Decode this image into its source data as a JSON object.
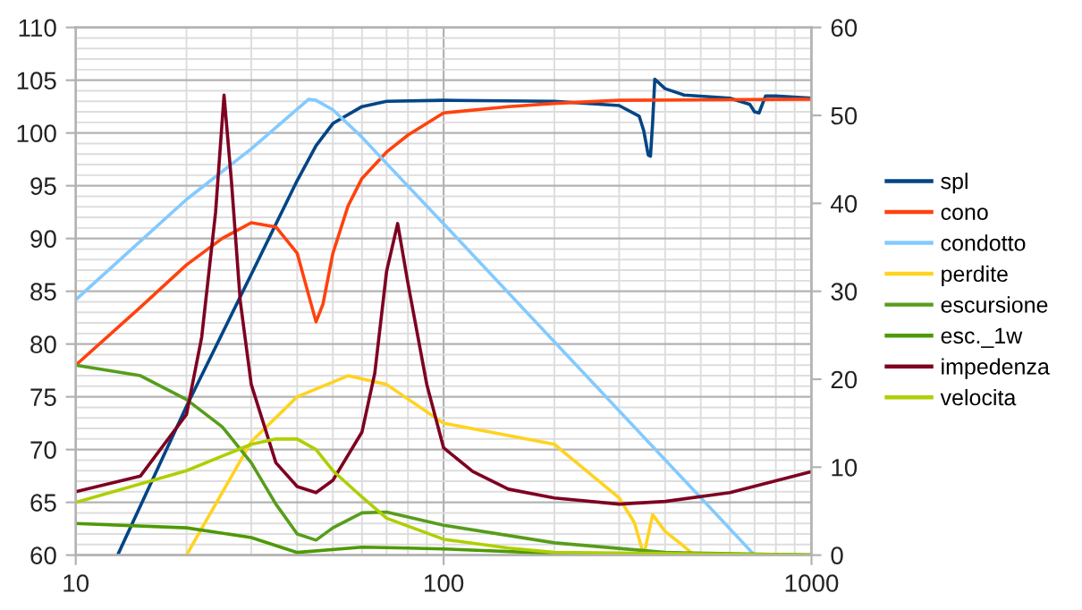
{
  "chart_data": {
    "type": "line",
    "log": "x",
    "xlim": [
      10,
      1000
    ],
    "xticks": [
      10,
      100,
      1000
    ],
    "ylim": [
      60,
      110
    ],
    "yticks": [
      60,
      65,
      70,
      75,
      80,
      85,
      90,
      95,
      100,
      105,
      110
    ],
    "y2lim": [
      0,
      60
    ],
    "y2ticks": [
      0,
      10,
      20,
      30,
      40,
      50,
      60
    ],
    "grid": true,
    "legend": "right",
    "marker": "none",
    "line_style": "solid",
    "series": [
      {
        "name": "spl",
        "color": "#004586",
        "x": [
          13,
          20,
          30,
          40,
          45,
          50,
          60,
          70,
          100,
          200,
          300,
          340,
          350,
          360,
          365,
          370,
          375,
          400,
          450,
          600,
          680,
          700,
          720,
          750,
          800,
          1000
        ],
        "values": [
          60,
          74.1,
          86.6,
          95.5,
          98.8,
          100.9,
          102.5,
          103,
          103.1,
          103.0,
          102.6,
          101.6,
          100.2,
          97.9,
          97.8,
          101,
          105.1,
          104.2,
          103.6,
          103.3,
          102.7,
          102,
          101.9,
          103.5,
          103.5,
          103.3
        ]
      },
      {
        "name": "cono",
        "color": "#ff420e",
        "x": [
          10,
          15,
          20,
          25,
          30,
          35,
          40,
          43,
          45,
          47,
          50,
          55,
          60,
          70,
          80,
          100,
          150,
          200,
          300,
          1000
        ],
        "values": [
          78,
          83.5,
          87.5,
          90,
          91.5,
          91.1,
          88.6,
          84.6,
          82.1,
          83.8,
          88.6,
          93.1,
          95.7,
          98.2,
          99.8,
          101.9,
          102.5,
          102.8,
          103.1,
          103.2
        ]
      },
      {
        "name": "condotto",
        "color": "#83caff",
        "x": [
          10,
          20,
          30,
          43,
          45,
          50,
          60,
          70,
          100,
          700
        ],
        "values": [
          84.2,
          93.7,
          98.5,
          103.2,
          103.1,
          102.2,
          99.6,
          97.1,
          91.4,
          60
        ]
      },
      {
        "name": "perdite",
        "color": "#ffd320",
        "axis": "y2",
        "x": [
          20,
          30,
          40,
          55,
          70,
          100,
          200,
          300,
          330,
          350,
          370,
          400,
          450,
          480
        ],
        "values": [
          0,
          12.9,
          18,
          20.4,
          19.4,
          15,
          12.6,
          6.5,
          3.7,
          0,
          4.6,
          2.7,
          1.0,
          0
        ]
      },
      {
        "name": "escursione",
        "color": "#579d1c",
        "axis": "y2",
        "x": [
          10,
          15,
          20,
          25,
          30,
          35,
          40,
          45,
          50,
          60,
          70,
          100,
          200,
          400,
          1000
        ],
        "values": [
          21.6,
          20.4,
          17.7,
          14.6,
          10.5,
          5.8,
          2.4,
          1.7,
          3.1,
          4.8,
          4.9,
          3.4,
          1.4,
          0.3,
          0
        ]
      },
      {
        "name": "esc._1w",
        "color": "#4e9a06",
        "axis": "y2",
        "x": [
          10,
          20,
          30,
          40,
          60,
          80,
          100,
          200,
          1000
        ],
        "values": [
          3.6,
          3.1,
          2.0,
          0.3,
          0.9,
          0.8,
          0.7,
          0.2,
          0
        ]
      },
      {
        "name": "impedenza",
        "color": "#7e0021",
        "axis": "y2",
        "x": [
          10,
          15,
          20,
          22,
          24,
          25.3,
          26.5,
          28,
          30,
          35,
          40,
          45,
          50,
          60,
          65,
          70,
          75,
          80,
          90,
          100,
          120,
          150,
          200,
          300,
          400,
          600,
          1000
        ],
        "values": [
          7.2,
          9,
          16,
          24.8,
          39,
          52.3,
          42.5,
          28.9,
          19.4,
          10.5,
          7.8,
          7.1,
          8.5,
          14,
          20.7,
          32.3,
          37.7,
          30.9,
          19.4,
          12.2,
          9.5,
          7.5,
          6.5,
          5.8,
          6.1,
          7.1,
          9.5
        ]
      },
      {
        "name": "velocita",
        "color": "#aecf00",
        "axis": "y2",
        "x": [
          10,
          20,
          30,
          35,
          40,
          45,
          50,
          60,
          70,
          100,
          150,
          200,
          1000
        ],
        "values": [
          6,
          9.6,
          12.6,
          13.2,
          13.2,
          12,
          9.6,
          6.6,
          4.2,
          1.8,
          0.8,
          0.3,
          0
        ]
      }
    ]
  }
}
